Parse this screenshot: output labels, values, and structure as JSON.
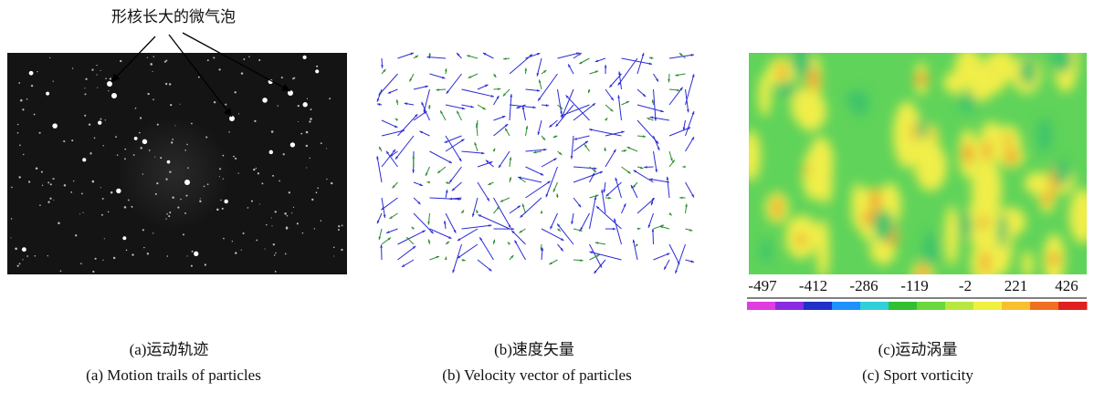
{
  "panel_a": {
    "annotation": "形核长大的微气泡",
    "caption_zh": "(a)运动轨迹",
    "caption_en": "(a) Motion trails of particles"
  },
  "panel_b": {
    "caption_zh": "(b)速度矢量",
    "caption_en": "(b) Velocity vector of particles"
  },
  "panel_c": {
    "caption_zh": "(c)运动涡量",
    "caption_en": "(c) Sport vorticity",
    "colorbar_labels": [
      -497,
      -412,
      -286,
      -119,
      -2,
      221,
      426
    ]
  }
}
